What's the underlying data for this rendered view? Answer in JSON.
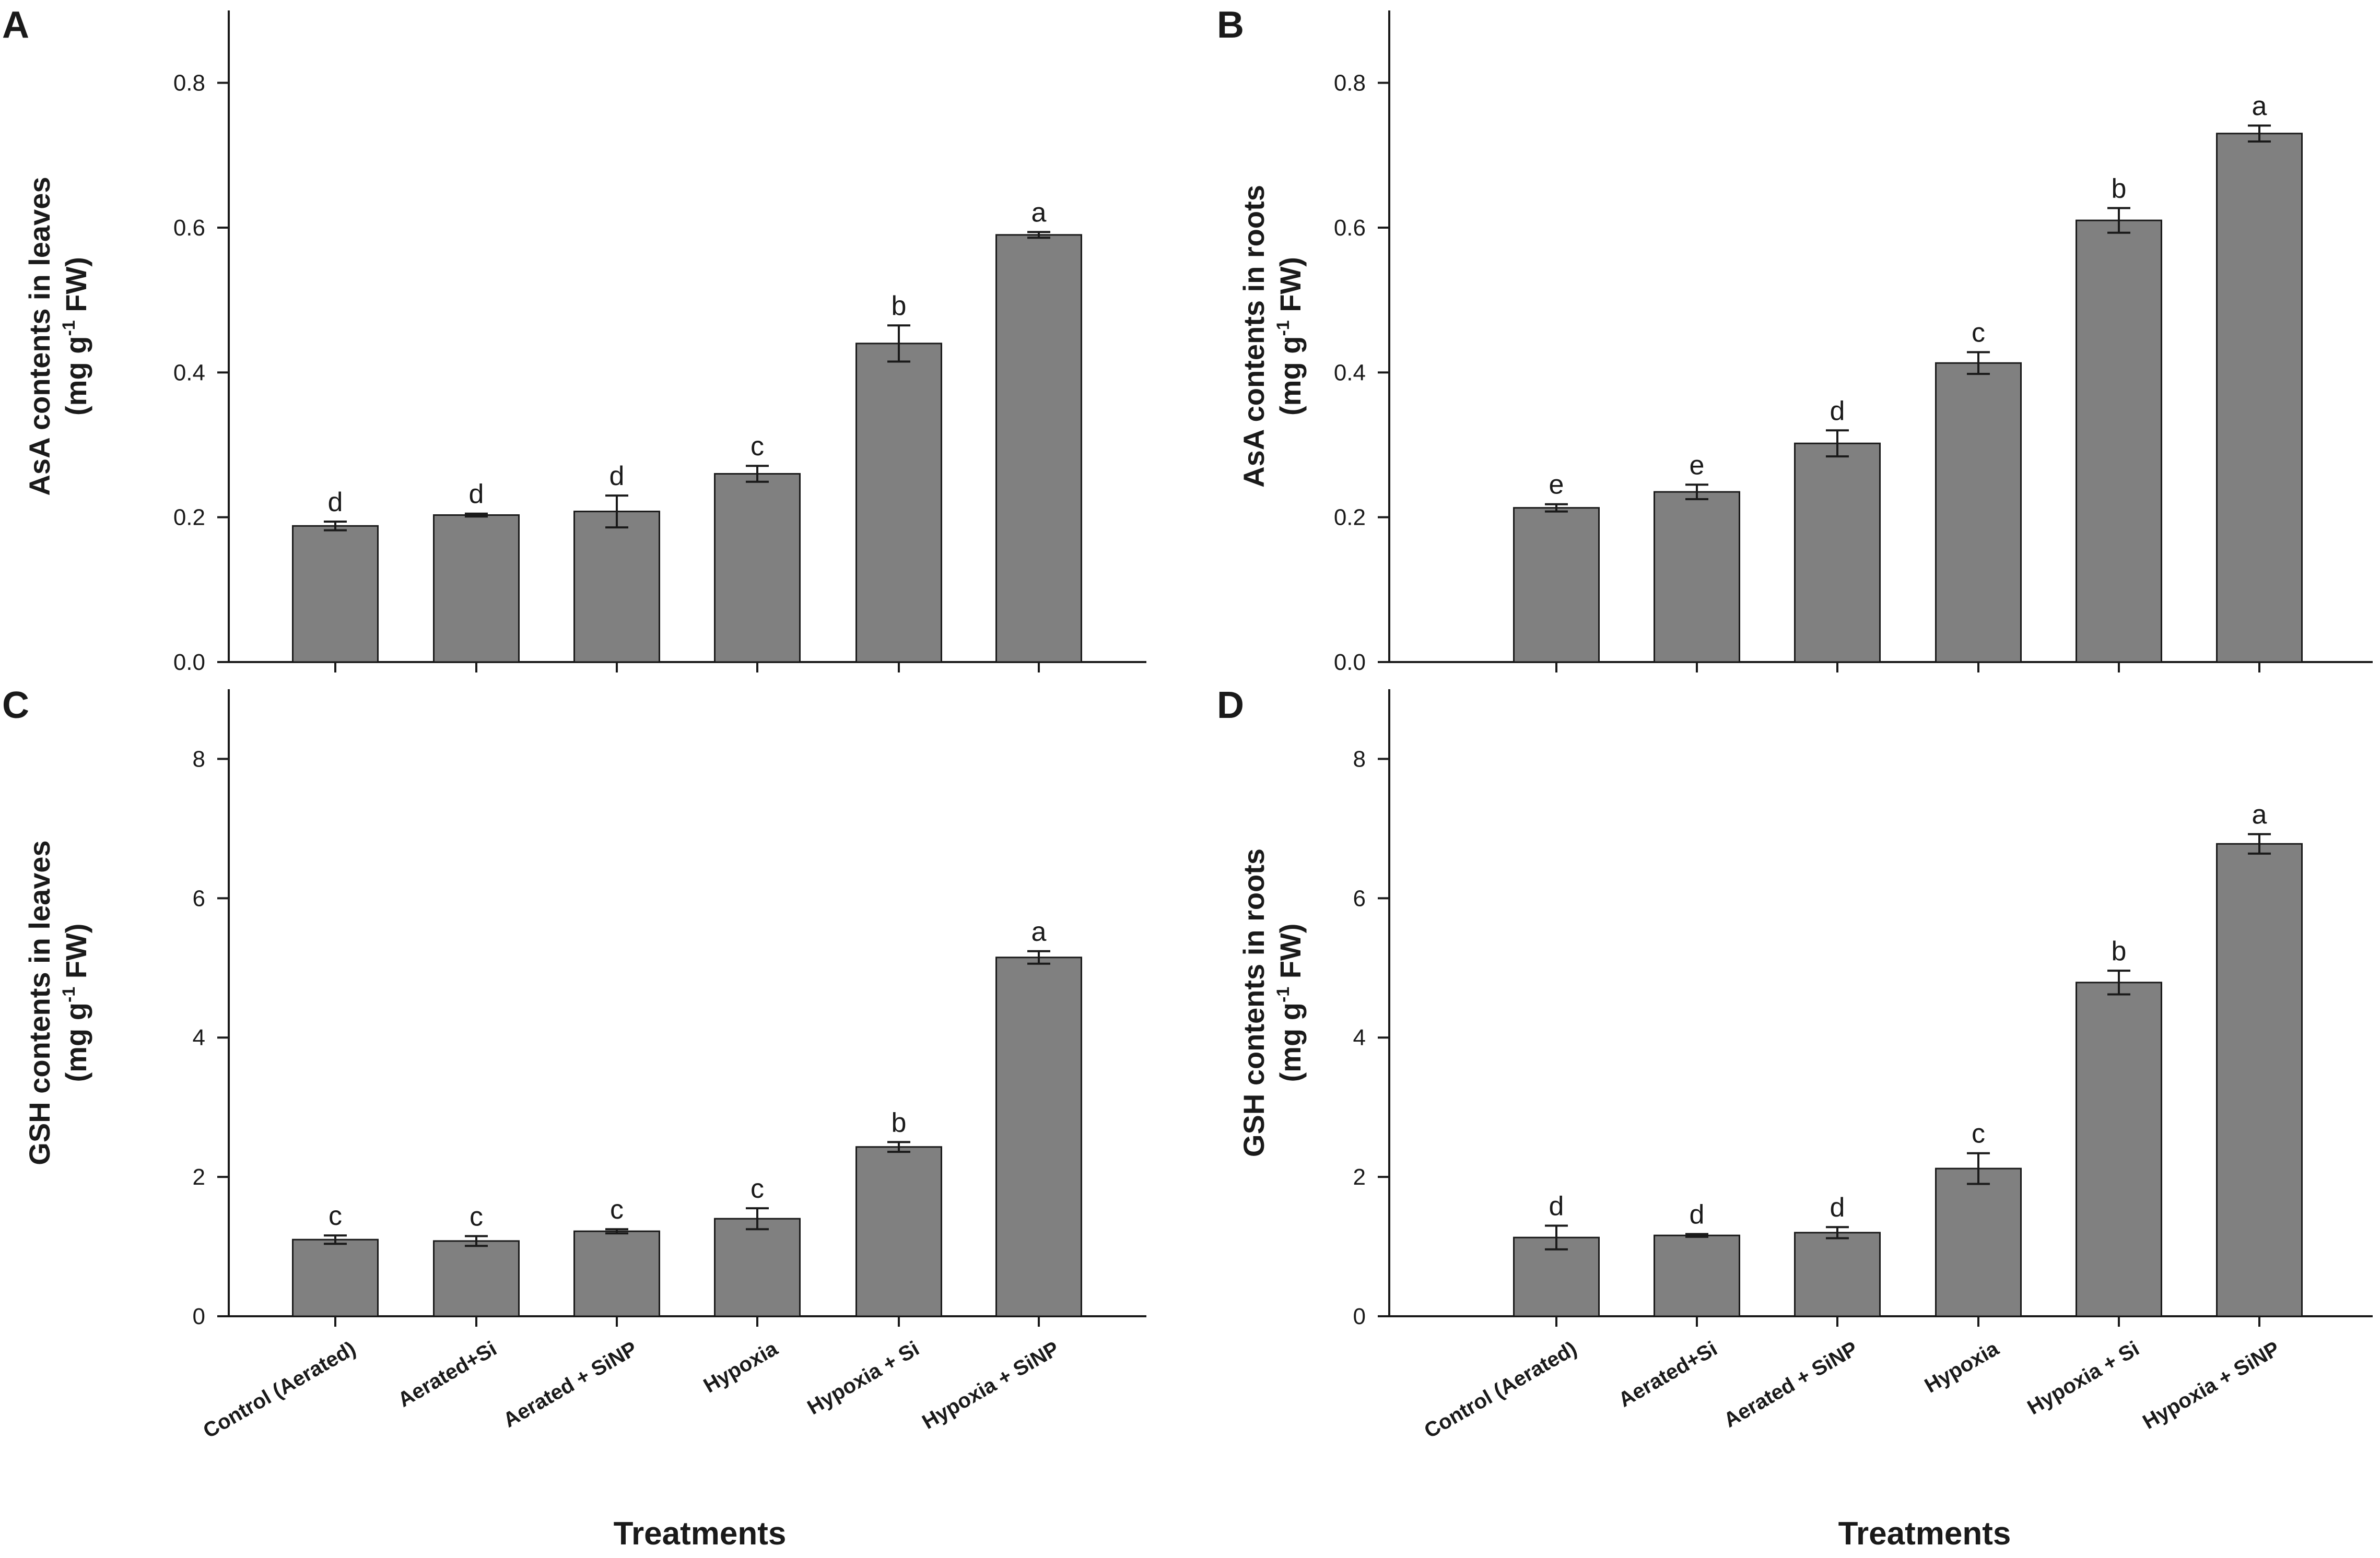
{
  "x_axis_title": "Treatments",
  "colors": {
    "bar": "#808080",
    "axis": "#1a1a1a"
  },
  "chart_data": [
    {
      "panel": "A",
      "type": "bar",
      "ylabel_line1": "AsA contents in leaves",
      "ylabel_line2_pre": "(mg g",
      "ylabel_sup": "-1",
      "ylabel_line2_post": " FW)",
      "ylim": [
        0,
        0.9
      ],
      "yticks": [
        0.0,
        0.2,
        0.4,
        0.6,
        0.8
      ],
      "ytick_labels": [
        "0.0",
        "0.2",
        "0.4",
        "0.6",
        "0.8"
      ],
      "show_category_labels": false,
      "categories": [
        "Control (Aerated)",
        "Aerated+Si",
        "Aerated + SiNP",
        "Hypoxia",
        "Hypoxia + Si",
        "Hypoxia + SiNP"
      ],
      "values": [
        0.188,
        0.203,
        0.208,
        0.26,
        0.44,
        0.59
      ],
      "errors": [
        0.006,
        0.002,
        0.022,
        0.011,
        0.025,
        0.004
      ],
      "letters": [
        "d",
        "d",
        "d",
        "c",
        "b",
        "a"
      ]
    },
    {
      "panel": "B",
      "type": "bar",
      "ylabel_line1": "AsA contents in roots",
      "ylabel_line2_pre": "(mg g",
      "ylabel_sup": "-1",
      "ylabel_line2_post": " FW)",
      "ylim": [
        0,
        0.9
      ],
      "yticks": [
        0.0,
        0.2,
        0.4,
        0.6,
        0.8
      ],
      "ytick_labels": [
        "0.0",
        "0.2",
        "0.4",
        "0.6",
        "0.8"
      ],
      "show_category_labels": false,
      "categories": [
        "Control (Aerated)",
        "Aerated+Si",
        "Aerated + SiNP",
        "Hypoxia",
        "Hypoxia + Si",
        "Hypoxia + SiNP"
      ],
      "values": [
        0.213,
        0.235,
        0.302,
        0.413,
        0.61,
        0.73
      ],
      "errors": [
        0.005,
        0.01,
        0.018,
        0.015,
        0.017,
        0.011
      ],
      "letters": [
        "e",
        "e",
        "d",
        "c",
        "b",
        "a"
      ]
    },
    {
      "panel": "C",
      "type": "bar",
      "ylabel_line1": "GSH contents in leaves",
      "ylabel_line2_pre": "(mg g",
      "ylabel_sup": "-1",
      "ylabel_line2_post": " FW)",
      "ylim": [
        0,
        9
      ],
      "yticks": [
        0,
        2,
        4,
        6,
        8
      ],
      "ytick_labels": [
        "0",
        "2",
        "4",
        "6",
        "8"
      ],
      "show_category_labels": true,
      "categories": [
        "Control (Aerated)",
        "Aerated+Si",
        "Aerated + SiNP",
        "Hypoxia",
        "Hypoxia + Si",
        "Hypoxia + SiNP"
      ],
      "values": [
        1.1,
        1.08,
        1.22,
        1.4,
        2.43,
        5.15
      ],
      "errors": [
        0.06,
        0.07,
        0.03,
        0.15,
        0.07,
        0.09
      ],
      "letters": [
        "c",
        "c",
        "c",
        "c",
        "b",
        "a"
      ]
    },
    {
      "panel": "D",
      "type": "bar",
      "ylabel_line1": "GSH contents in roots",
      "ylabel_line2_pre": "(mg g",
      "ylabel_sup": "-1",
      "ylabel_line2_post": " FW)",
      "ylim": [
        0,
        9
      ],
      "yticks": [
        0,
        2,
        4,
        6,
        8
      ],
      "ytick_labels": [
        "0",
        "2",
        "4",
        "6",
        "8"
      ],
      "show_category_labels": true,
      "categories": [
        "Control (Aerated)",
        "Aerated+Si",
        "Aerated + SiNP",
        "Hypoxia",
        "Hypoxia + Si",
        "Hypoxia + SiNP"
      ],
      "values": [
        1.13,
        1.16,
        1.2,
        2.12,
        4.79,
        6.78
      ],
      "errors": [
        0.17,
        0.02,
        0.08,
        0.22,
        0.17,
        0.14
      ],
      "letters": [
        "d",
        "d",
        "d",
        "c",
        "b",
        "a"
      ]
    }
  ]
}
